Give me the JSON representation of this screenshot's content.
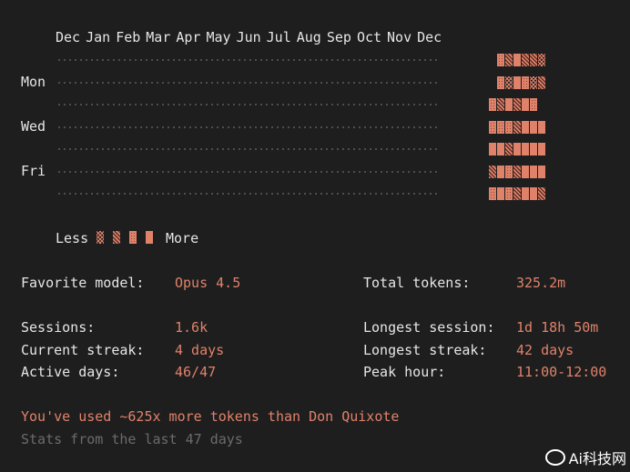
{
  "heatmap": {
    "months": [
      "Dec",
      "Jan",
      "Feb",
      "Mar",
      "Apr",
      "May",
      "Jun",
      "Jul",
      "Aug",
      "Sep",
      "Oct",
      "Nov",
      "Dec"
    ],
    "day_labels": [
      "",
      "Mon",
      "",
      "Wed",
      "",
      "Fri",
      ""
    ],
    "rows": [
      [
        0,
        0,
        0,
        0,
        0,
        0,
        3,
        2,
        4,
        2,
        2,
        1,
        0
      ],
      [
        0,
        0,
        0,
        0,
        0,
        0,
        3,
        1,
        4,
        3,
        1,
        2,
        0
      ],
      [
        0,
        0,
        0,
        0,
        0,
        3,
        2,
        4,
        2,
        4,
        3,
        0,
        0
      ],
      [
        0,
        0,
        0,
        0,
        0,
        3,
        3,
        3,
        2,
        4,
        4,
        4,
        0
      ],
      [
        0,
        0,
        0,
        0,
        0,
        4,
        4,
        2,
        4,
        4,
        4,
        4,
        0
      ],
      [
        0,
        0,
        0,
        0,
        0,
        2,
        4,
        3,
        2,
        4,
        4,
        4,
        0
      ],
      [
        0,
        0,
        0,
        0,
        0,
        3,
        4,
        3,
        2,
        4,
        4,
        2,
        0
      ]
    ]
  },
  "legend": {
    "less": "Less",
    "more": "More",
    "levels": [
      1,
      2,
      3,
      4
    ]
  },
  "stats": {
    "favorite_model_label": "Favorite model:",
    "favorite_model_value": "Opus 4.5",
    "total_tokens_label": "Total tokens:",
    "total_tokens_value": "325.2m",
    "sessions_label": "Sessions:",
    "sessions_value": "1.6k",
    "longest_session_label": "Longest session:",
    "longest_session_value": "1d 18h 50m",
    "current_streak_label": "Current streak:",
    "current_streak_value": "4 days",
    "longest_streak_label": "Longest streak:",
    "longest_streak_value": "42 days",
    "active_days_label": "Active days:",
    "active_days_value": "46/47",
    "peak_hour_label": "Peak hour:",
    "peak_hour_value": "11:00-12:00"
  },
  "footer": {
    "fun_fact": "You've used ~625x more tokens than Don Quixote",
    "stats_window": "Stats from the last 47 days"
  },
  "watermark": {
    "text": "Ai科技网"
  },
  "colors": {
    "accent": "#e0826a",
    "background": "#1e1e1e",
    "text": "#e6e6e6",
    "dim": "#6b6b6b"
  }
}
